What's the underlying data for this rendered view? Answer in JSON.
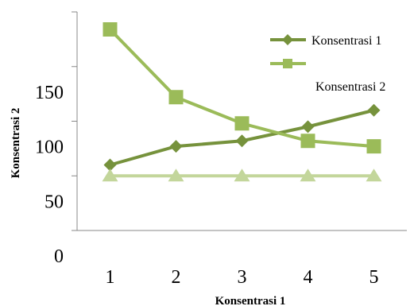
{
  "chart_data": {
    "type": "line",
    "title": "",
    "xlabel": "Konsentrasi 1",
    "ylabel": "Konsentrasi 2",
    "x": [
      1,
      2,
      3,
      4,
      5
    ],
    "xlim": [
      0.5,
      5.5
    ],
    "ylim": [
      0,
      200
    ],
    "y_ticks": [
      "0",
      "50",
      "100",
      "150"
    ],
    "x_ticks": [
      "1",
      "2",
      "3",
      "4",
      "5"
    ],
    "grid": false,
    "legend_position": "top-right",
    "series": [
      {
        "name": "Konsentrasi 1",
        "values": [
          60,
          77,
          82,
          95,
          110
        ],
        "color": "#76923c",
        "marker": "diamond"
      },
      {
        "name": "",
        "values": [
          184,
          122,
          98,
          82,
          77
        ],
        "color": "#9bbb59",
        "marker": "square"
      },
      {
        "name": "Konsentrasi 2",
        "values": [
          50,
          50,
          50,
          50,
          50
        ],
        "color": "#c3d69b",
        "marker": "triangle"
      }
    ]
  }
}
